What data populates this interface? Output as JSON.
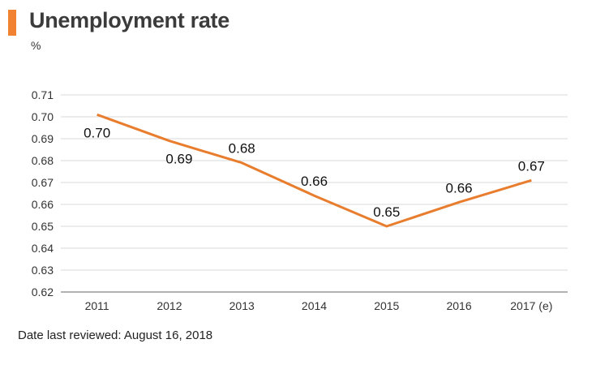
{
  "title": "Unemployment rate",
  "unit": "%",
  "footer": "Date last reviewed: August 16, 2018",
  "colors": {
    "accent": "#f08232",
    "line": "#e87d2e",
    "grid": "#d9d9d9",
    "axis": "#666666"
  },
  "chart_data": {
    "type": "line",
    "title": "Unemployment rate",
    "ylabel": "%",
    "xlabel": "",
    "categories": [
      "2011",
      "2012",
      "2013",
      "2014",
      "2015",
      "2016",
      "2017 (e)"
    ],
    "series": [
      {
        "values": [
          0.701,
          0.689,
          0.679,
          0.664,
          0.65,
          0.661,
          0.671
        ],
        "data_labels": [
          "0.70",
          "0.69",
          "0.68",
          "0.66",
          "0.65",
          "0.66",
          "0.67"
        ]
      }
    ],
    "ylim": [
      0.62,
      0.71
    ],
    "yticks": [
      "0.71",
      "0.70",
      "0.69",
      "0.68",
      "0.67",
      "0.66",
      "0.65",
      "0.64",
      "0.63",
      "0.62"
    ],
    "grid": true,
    "legend": "none"
  }
}
